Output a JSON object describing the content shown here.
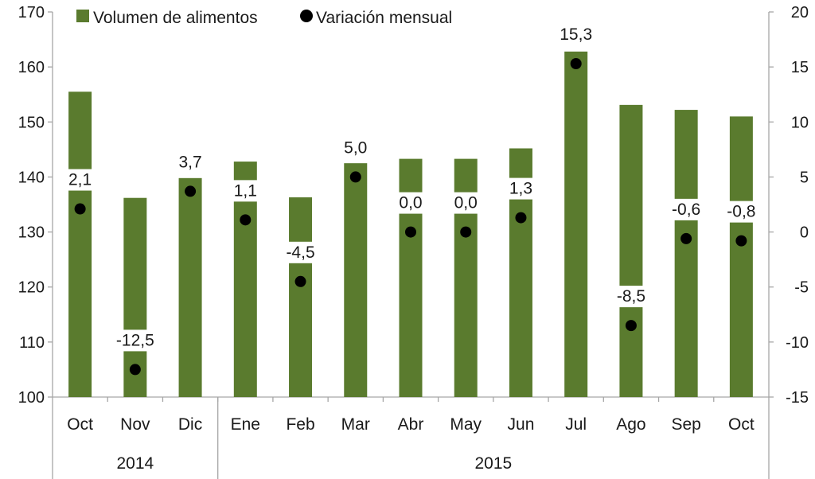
{
  "chart_data": {
    "type": "bar",
    "categories": [
      "Oct",
      "Nov",
      "Dic",
      "Ene",
      "Feb",
      "Mar",
      "Abr",
      "May",
      "Jun",
      "Jul",
      "Ago",
      "Sep",
      "Oct"
    ],
    "year_groups": [
      {
        "label": "2014",
        "count": 3
      },
      {
        "label": "2015",
        "count": 10
      }
    ],
    "series": [
      {
        "name": "Volumen de alimentos",
        "axis": "left",
        "color": "#5a7b2e",
        "values": [
          155.5,
          136.2,
          139.8,
          142.8,
          136.3,
          142.5,
          143.3,
          143.3,
          145.2,
          162.8,
          153.1,
          152.2,
          151.0
        ]
      },
      {
        "name": "Variación mensual",
        "axis": "right",
        "color": "#000000",
        "values": [
          2.1,
          -12.5,
          3.7,
          1.1,
          -4.5,
          5.0,
          0.0,
          0.0,
          1.3,
          15.3,
          -8.5,
          -0.6,
          -0.8
        ],
        "labels": [
          "2,1",
          "-12,5",
          "3,7",
          "1,1",
          "-4,5",
          "5,0",
          "0,0",
          "0,0",
          "1,3",
          "15,3",
          "-8,5",
          "-0,6",
          "-0,8"
        ]
      }
    ],
    "y_left": {
      "min": 100,
      "max": 170,
      "ticks": [
        "100",
        "110",
        "120",
        "130",
        "140",
        "150",
        "160",
        "170"
      ]
    },
    "y_right": {
      "min": -15,
      "max": 20,
      "ticks": [
        "-15",
        "-10",
        "-5",
        "0",
        "5",
        "10",
        "15",
        "20"
      ]
    },
    "legend_position": "top-left",
    "grid": false
  }
}
